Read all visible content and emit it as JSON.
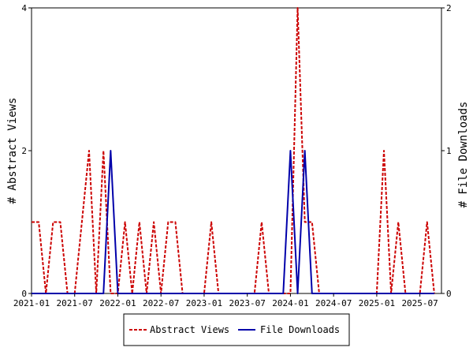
{
  "chart_data": {
    "type": "line",
    "title": "",
    "xlabel": "",
    "y_left_label": "# Abstract Views",
    "y_right_label": "# File Downloads",
    "x_ticks": [
      "2021-01",
      "2021-07",
      "2022-01",
      "2022-07",
      "2023-01",
      "2023-07",
      "2024-01",
      "2024-07",
      "2025-01",
      "2025-07"
    ],
    "x_range": [
      "2021-01",
      "2025-10"
    ],
    "y_left_range": [
      0,
      4
    ],
    "y_left_ticks": [
      "0",
      "2",
      "4"
    ],
    "y_right_range": [
      0,
      2
    ],
    "y_right_ticks": [
      "0",
      "1",
      "2"
    ],
    "grid": false,
    "legend_position": "bottom",
    "series": [
      {
        "name": "Abstract Views",
        "axis": "left",
        "color": "#cc0000",
        "style": "dashed",
        "x": [
          "2021-01",
          "2021-02",
          "2021-03",
          "2021-04",
          "2021-05",
          "2021-06",
          "2021-07",
          "2021-08",
          "2021-09",
          "2021-10",
          "2021-11",
          "2021-12",
          "2022-01",
          "2022-02",
          "2022-03",
          "2022-04",
          "2022-05",
          "2022-06",
          "2022-07",
          "2022-08",
          "2022-09",
          "2022-10",
          "2022-11",
          "2022-12",
          "2023-01",
          "2023-02",
          "2023-03",
          "2023-04",
          "2023-05",
          "2023-06",
          "2023-07",
          "2023-08",
          "2023-09",
          "2023-10",
          "2023-11",
          "2023-12",
          "2024-01",
          "2024-02",
          "2024-03",
          "2024-04",
          "2024-05",
          "2024-06",
          "2024-07",
          "2024-08",
          "2024-09",
          "2024-10",
          "2024-11",
          "2024-12",
          "2025-01",
          "2025-02",
          "2025-03",
          "2025-04",
          "2025-05",
          "2025-06",
          "2025-07",
          "2025-08",
          "2025-09"
        ],
        "values": [
          1,
          1,
          0,
          1,
          1,
          0,
          0,
          1,
          2,
          0,
          2,
          0,
          0,
          1,
          0,
          1,
          0,
          1,
          0,
          1,
          1,
          0,
          0,
          0,
          0,
          1,
          0,
          0,
          0,
          0,
          0,
          0,
          1,
          0,
          0,
          0,
          0,
          4,
          1,
          1,
          0,
          0,
          0,
          0,
          0,
          0,
          0,
          0,
          0,
          2,
          0,
          1,
          0,
          0,
          0,
          1,
          0
        ]
      },
      {
        "name": "File Downloads",
        "axis": "right",
        "color": "#0000aa",
        "style": "solid",
        "x": [
          "2021-01",
          "2021-02",
          "2021-03",
          "2021-04",
          "2021-05",
          "2021-06",
          "2021-07",
          "2021-08",
          "2021-09",
          "2021-10",
          "2021-11",
          "2021-12",
          "2022-01",
          "2022-02",
          "2022-03",
          "2022-04",
          "2022-05",
          "2022-06",
          "2022-07",
          "2022-08",
          "2022-09",
          "2022-10",
          "2022-11",
          "2022-12",
          "2023-01",
          "2023-02",
          "2023-03",
          "2023-04",
          "2023-05",
          "2023-06",
          "2023-07",
          "2023-08",
          "2023-09",
          "2023-10",
          "2023-11",
          "2023-12",
          "2024-01",
          "2024-02",
          "2024-03",
          "2024-04",
          "2024-05",
          "2024-06",
          "2024-07",
          "2024-08",
          "2024-09",
          "2024-10",
          "2024-11",
          "2024-12",
          "2025-01",
          "2025-02",
          "2025-03",
          "2025-04",
          "2025-05",
          "2025-06",
          "2025-07",
          "2025-08",
          "2025-09"
        ],
        "values": [
          0,
          0,
          0,
          0,
          0,
          0,
          0,
          0,
          0,
          0,
          0,
          1,
          0,
          0,
          0,
          0,
          0,
          0,
          0,
          0,
          0,
          0,
          0,
          0,
          0,
          0,
          0,
          0,
          0,
          0,
          0,
          0,
          0,
          0,
          0,
          0,
          1,
          0,
          1,
          0,
          0,
          0,
          0,
          0,
          0,
          0,
          0,
          0,
          0,
          0,
          0,
          0,
          0,
          0,
          0,
          0,
          0
        ]
      }
    ]
  }
}
